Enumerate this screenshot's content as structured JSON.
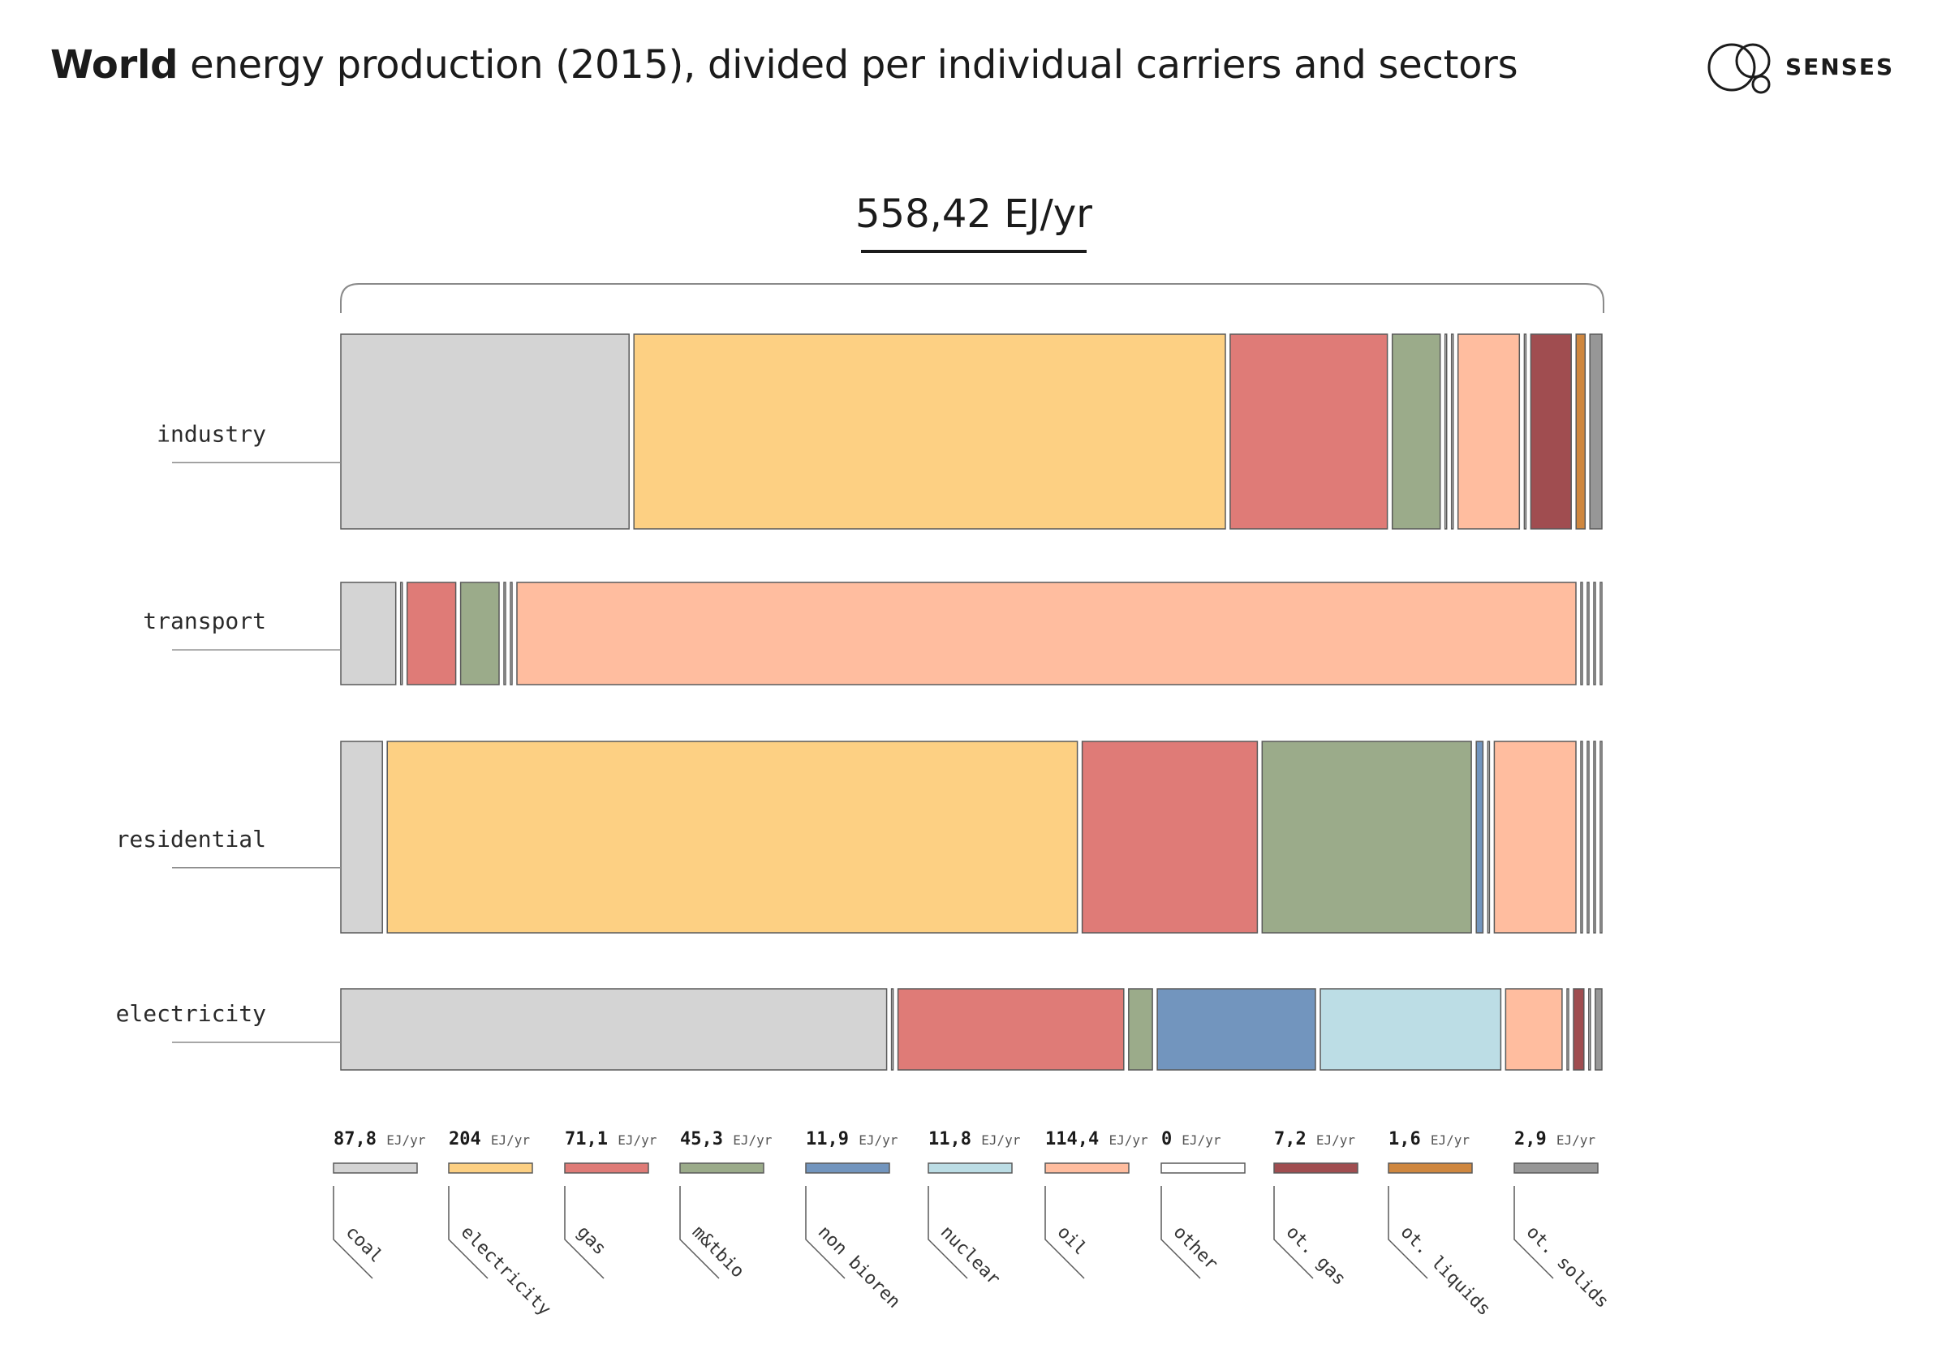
{
  "title": {
    "bold": "World",
    "rest": "energy production (2015), divided per individual carriers and sectors"
  },
  "logo": {
    "text": "SENSES",
    "icon": "senses-circles-logo"
  },
  "chart_data": {
    "type": "bar",
    "total_label": "558,42 EJ/yr",
    "sectors": [
      {
        "name": "industry",
        "values": [
          38.5,
          79.0,
          21.0,
          6.4,
          0,
          0,
          8.2,
          0,
          5.4,
          1.2,
          1.6
        ]
      },
      {
        "name": "transport",
        "values": [
          7.0,
          0,
          6.2,
          4.9,
          0,
          0,
          135.0,
          0,
          0,
          0,
          0
        ]
      },
      {
        "name": "residential",
        "values": [
          5.6,
          93.0,
          23.6,
          28.2,
          0.9,
          0,
          11.0,
          0,
          0,
          0,
          0
        ]
      },
      {
        "name": "electricity",
        "values": [
          73.5,
          0,
          30.4,
          3.2,
          21.3,
          24.3,
          7.6,
          0,
          1.4,
          0,
          0.9
        ]
      }
    ],
    "carriers": [
      {
        "name": "coal",
        "value": "87,8",
        "unit": "EJ/yr",
        "color": "#d4d4d4"
      },
      {
        "name": "electricity",
        "value": "204",
        "unit": "EJ/yr",
        "color": "#fdd083"
      },
      {
        "name": "gas",
        "value": "71,1",
        "unit": "EJ/yr",
        "color": "#df7b77"
      },
      {
        "name": "m&tbio",
        "value": "45,3",
        "unit": "EJ/yr",
        "color": "#9bab8a"
      },
      {
        "name": "non bioren",
        "value": "11,9",
        "unit": "EJ/yr",
        "color": "#7295be"
      },
      {
        "name": "nuclear",
        "value": "11,8",
        "unit": "EJ/yr",
        "color": "#bcdde5"
      },
      {
        "name": "oil",
        "value": "114,4",
        "unit": "EJ/yr",
        "color": "#ffbd9f"
      },
      {
        "name": "other",
        "value": "0",
        "unit": "EJ/yr",
        "color": "#ffffff"
      },
      {
        "name": "ot. gas",
        "value": "7,2",
        "unit": "EJ/yr",
        "color": "#a04d50"
      },
      {
        "name": "ot. liquids",
        "value": "1,6",
        "unit": "EJ/yr",
        "color": "#cf873f"
      },
      {
        "name": "ot. solids",
        "value": "2,9",
        "unit": "EJ/yr",
        "color": "#979797"
      }
    ]
  }
}
